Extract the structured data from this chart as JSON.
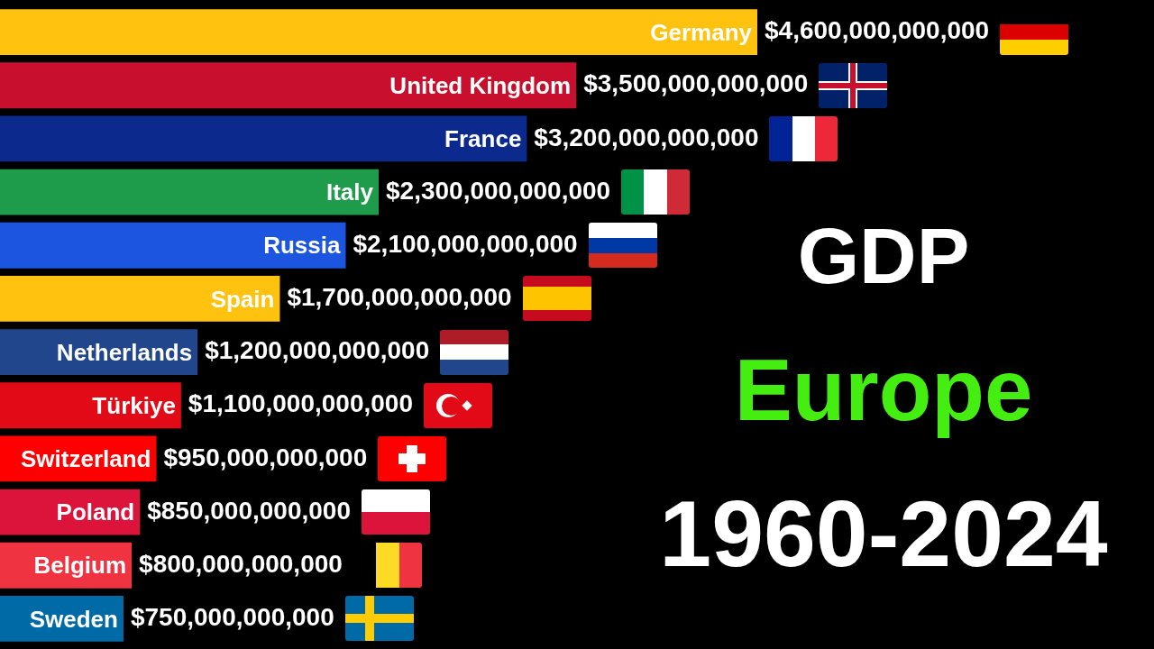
{
  "chart_data": {
    "type": "bar",
    "orientation": "horizontal",
    "title": "GDP",
    "subtitle": "Europe",
    "annotations": [
      "1960-2024"
    ],
    "categories": [
      "Germany",
      "United Kingdom",
      "France",
      "Italy",
      "Russia",
      "Spain",
      "Netherlands",
      "Türkiye",
      "Switzerland",
      "Poland",
      "Belgium",
      "Sweden"
    ],
    "values": [
      4600000000000,
      3500000000000,
      3200000000000,
      2300000000000,
      2100000000000,
      1700000000000,
      1200000000000,
      1100000000000,
      950000000000,
      850000000000,
      800000000000,
      750000000000
    ],
    "colors": [
      "#ffc20e",
      "#c8102e",
      "#0c2a8e",
      "#1e9b4b",
      "#1c56e0",
      "#ffc20e",
      "#21468b",
      "#e30a17",
      "#ff0000",
      "#dc143c",
      "#ef3340",
      "#006aa7"
    ],
    "value_labels": [
      "$4,600,000,000,000",
      "$3,500,000,000,000",
      "$3,200,000,000,000",
      "$2,300,000,000,000",
      "$2,100,000,000,000",
      "$1,700,000,000,000",
      "$1,200,000,000,000",
      "$1,100,000,000,000",
      "$950,000,000,000",
      "$850,000,000,000",
      "$800,000,000,000",
      "$750,000,000,000"
    ],
    "tick_labels": false,
    "legend": false
  }
}
